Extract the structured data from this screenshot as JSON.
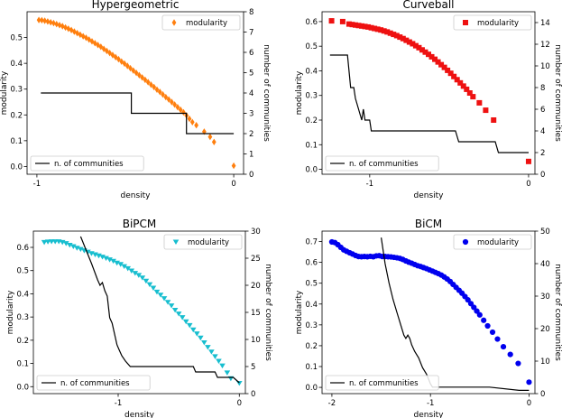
{
  "figure_caption": "",
  "chart_data": [
    {
      "type": "line",
      "title": "Hypergeometric",
      "xlabel": "density",
      "ylabel": "modularity",
      "y2label": "number of communities",
      "xlim": [
        -1.05,
        0.05
      ],
      "ylim": [
        -0.03,
        0.6
      ],
      "y2lim": [
        0,
        8
      ],
      "xticks": [
        -1,
        0
      ],
      "xtick_labels": [
        "-1",
        "0"
      ],
      "yticks": [
        0.0,
        0.1,
        0.2,
        0.3,
        0.4,
        0.5
      ],
      "ytick_labels": [
        "0.0",
        "0.1",
        "0.2",
        "0.3",
        "0.4",
        "0.5"
      ],
      "y2ticks": [
        0,
        1,
        2,
        3,
        4,
        5,
        6,
        7,
        8
      ],
      "y2tick_labels": [
        "0",
        "1",
        "2",
        "3",
        "4",
        "5",
        "6",
        "7",
        "8"
      ],
      "series": [
        {
          "name": "modularity",
          "axis": "left",
          "marker": "diamond",
          "color": "#ff7f0e",
          "legend_loc": "top-right",
          "x": [
            -0.99,
            -0.975,
            -0.96,
            -0.945,
            -0.93,
            -0.915,
            -0.9,
            -0.885,
            -0.87,
            -0.855,
            -0.84,
            -0.825,
            -0.81,
            -0.795,
            -0.78,
            -0.765,
            -0.75,
            -0.735,
            -0.72,
            -0.705,
            -0.69,
            -0.675,
            -0.66,
            -0.645,
            -0.63,
            -0.615,
            -0.6,
            -0.585,
            -0.57,
            -0.555,
            -0.54,
            -0.525,
            -0.51,
            -0.495,
            -0.48,
            -0.465,
            -0.45,
            -0.435,
            -0.42,
            -0.405,
            -0.39,
            -0.375,
            -0.36,
            -0.345,
            -0.33,
            -0.315,
            -0.3,
            -0.285,
            -0.27,
            -0.255,
            -0.24,
            -0.225,
            -0.21,
            -0.19,
            -0.15,
            -0.12,
            -0.1,
            0.0
          ],
          "y": [
            0.568,
            0.567,
            0.565,
            0.562,
            0.559,
            0.556,
            0.552,
            0.548,
            0.544,
            0.539,
            0.534,
            0.529,
            0.523,
            0.517,
            0.511,
            0.505,
            0.499,
            0.492,
            0.485,
            0.478,
            0.471,
            0.464,
            0.456,
            0.448,
            0.44,
            0.432,
            0.424,
            0.416,
            0.407,
            0.399,
            0.39,
            0.381,
            0.372,
            0.363,
            0.354,
            0.345,
            0.336,
            0.327,
            0.317,
            0.308,
            0.298,
            0.289,
            0.279,
            0.269,
            0.26,
            0.25,
            0.24,
            0.23,
            0.22,
            0.21,
            0.198,
            0.185,
            0.172,
            0.16,
            0.135,
            0.115,
            0.095,
            0.003
          ]
        },
        {
          "name": "n. of communities",
          "axis": "right",
          "marker": "none",
          "color": "#000000",
          "legend_loc": "bottom-left",
          "x": [
            -0.98,
            -0.52,
            -0.52,
            -0.24,
            -0.24,
            0.0
          ],
          "y": [
            4,
            4,
            3,
            3,
            2,
            2
          ]
        }
      ]
    },
    {
      "type": "line",
      "title": "Curveball",
      "xlabel": "density",
      "ylabel": "modularity",
      "y2label": "number of communities",
      "xlim": [
        -1.3,
        0.04
      ],
      "ylim": [
        -0.02,
        0.64
      ],
      "y2lim": [
        0,
        15
      ],
      "xticks": [
        -1,
        0
      ],
      "xtick_labels": [
        "-1",
        "0"
      ],
      "yticks": [
        0.0,
        0.1,
        0.2,
        0.3,
        0.4,
        0.5,
        0.6
      ],
      "ytick_labels": [
        "0.0",
        "0.1",
        "0.2",
        "0.3",
        "0.4",
        "0.5",
        "0.6"
      ],
      "y2ticks": [
        0,
        2,
        4,
        6,
        8,
        10,
        12,
        14
      ],
      "y2tick_labels": [
        "0",
        "2",
        "4",
        "6",
        "8",
        "10",
        "12",
        "14"
      ],
      "series": [
        {
          "name": "modularity",
          "axis": "left",
          "marker": "square",
          "color": "#ee1111",
          "legend_loc": "top-right",
          "x": [
            -1.24,
            -1.17,
            -1.13,
            -1.11,
            -1.09,
            -1.07,
            -1.05,
            -1.03,
            -1.01,
            -0.99,
            -0.97,
            -0.95,
            -0.93,
            -0.91,
            -0.89,
            -0.87,
            -0.85,
            -0.83,
            -0.81,
            -0.79,
            -0.77,
            -0.75,
            -0.73,
            -0.71,
            -0.69,
            -0.67,
            -0.65,
            -0.63,
            -0.61,
            -0.59,
            -0.57,
            -0.55,
            -0.53,
            -0.51,
            -0.49,
            -0.47,
            -0.45,
            -0.43,
            -0.41,
            -0.39,
            -0.37,
            -0.35,
            -0.31,
            -0.27,
            -0.22,
            0.0
          ],
          "y": [
            0.603,
            0.6,
            0.59,
            0.588,
            0.586,
            0.584,
            0.582,
            0.58,
            0.578,
            0.575,
            0.572,
            0.569,
            0.566,
            0.562,
            0.558,
            0.553,
            0.548,
            0.543,
            0.537,
            0.531,
            0.524,
            0.517,
            0.51,
            0.502,
            0.494,
            0.485,
            0.476,
            0.467,
            0.457,
            0.447,
            0.436,
            0.425,
            0.414,
            0.402,
            0.39,
            0.377,
            0.364,
            0.351,
            0.338,
            0.325,
            0.31,
            0.295,
            0.27,
            0.24,
            0.2,
            0.032
          ]
        },
        {
          "name": "n. of communities",
          "axis": "right",
          "marker": "none",
          "color": "#000000",
          "legend_loc": "bottom-left",
          "x": [
            -1.25,
            -1.14,
            -1.12,
            -1.1,
            -1.09,
            -1.07,
            -1.05,
            -1.04,
            -1.03,
            -1.0,
            -0.99,
            -0.66,
            -0.64,
            -0.46,
            -0.44,
            -0.21,
            -0.19,
            0.0
          ],
          "y": [
            11,
            11,
            8,
            8,
            7,
            6,
            5,
            6,
            5,
            5,
            4,
            4,
            4,
            4,
            3,
            3,
            2,
            2
          ]
        }
      ]
    },
    {
      "type": "line",
      "title": "BiPCM",
      "xlabel": "density",
      "ylabel": "modularity",
      "y2label": "number of communities",
      "xlim": [
        -1.7,
        0.05
      ],
      "ylim": [
        -0.03,
        0.67
      ],
      "y2lim": [
        0,
        30
      ],
      "xticks": [
        -1,
        0
      ],
      "xtick_labels": [
        "-1",
        "0"
      ],
      "yticks": [
        0.0,
        0.1,
        0.2,
        0.3,
        0.4,
        0.5,
        0.6
      ],
      "ytick_labels": [
        "0.0",
        "0.1",
        "0.2",
        "0.3",
        "0.4",
        "0.5",
        "0.6"
      ],
      "y2ticks": [
        0,
        5,
        10,
        15,
        20,
        25,
        30
      ],
      "y2tick_labels": [
        "0",
        "5",
        "10",
        "15",
        "20",
        "25",
        "30"
      ],
      "series": [
        {
          "name": "modularity",
          "axis": "left",
          "marker": "triangle-down",
          "color": "#17becf",
          "legend_loc": "top-right",
          "x": [
            -1.61,
            -1.58,
            -1.55,
            -1.52,
            -1.49,
            -1.46,
            -1.43,
            -1.4,
            -1.37,
            -1.34,
            -1.31,
            -1.28,
            -1.25,
            -1.22,
            -1.19,
            -1.16,
            -1.13,
            -1.1,
            -1.07,
            -1.04,
            -1.01,
            -0.98,
            -0.95,
            -0.92,
            -0.89,
            -0.86,
            -0.83,
            -0.8,
            -0.77,
            -0.74,
            -0.71,
            -0.68,
            -0.65,
            -0.62,
            -0.59,
            -0.56,
            -0.53,
            -0.5,
            -0.47,
            -0.44,
            -0.41,
            -0.38,
            -0.35,
            -0.32,
            -0.29,
            -0.26,
            -0.23,
            -0.2,
            -0.17,
            -0.14,
            -0.1,
            -0.07,
            0.0
          ],
          "y": [
            0.622,
            0.624,
            0.625,
            0.625,
            0.625,
            0.622,
            0.617,
            0.61,
            0.604,
            0.597,
            0.592,
            0.586,
            0.58,
            0.574,
            0.569,
            0.564,
            0.559,
            0.553,
            0.547,
            0.541,
            0.533,
            0.527,
            0.518,
            0.509,
            0.499,
            0.489,
            0.48,
            0.469,
            0.455,
            0.44,
            0.425,
            0.408,
            0.395,
            0.38,
            0.364,
            0.349,
            0.33,
            0.314,
            0.298,
            0.28,
            0.264,
            0.245,
            0.228,
            0.21,
            0.19,
            0.17,
            0.15,
            0.13,
            0.11,
            0.09,
            0.06,
            0.035,
            0.015
          ]
        },
        {
          "name": "n. of communities",
          "axis": "right",
          "marker": "none",
          "color": "#000000",
          "legend_loc": "bottom-left",
          "x": [
            -1.31,
            -1.22,
            -1.17,
            -1.15,
            -1.13,
            -1.11,
            -1.09,
            -1.07,
            -1.05,
            -1.03,
            -1.01,
            -0.99,
            -0.97,
            -0.94,
            -0.9,
            -0.87,
            -0.85,
            -0.38,
            -0.36,
            -0.2,
            -0.18,
            -0.05,
            0.0
          ],
          "y": [
            29,
            24,
            21,
            20,
            20.5,
            19,
            18,
            14,
            13,
            11,
            9,
            8,
            7,
            6,
            5,
            5,
            5,
            5,
            4,
            4,
            3,
            3,
            2
          ]
        }
      ]
    },
    {
      "type": "line",
      "title": "BiCM",
      "xlabel": "density",
      "ylabel": "modularity",
      "y2label": "number of communities",
      "xlim": [
        -2.1,
        0.06
      ],
      "ylim": [
        -0.03,
        0.75
      ],
      "y2lim": [
        0,
        50
      ],
      "xticks": [
        -2,
        -1,
        0
      ],
      "xtick_labels": [
        "-2",
        "-1",
        "0"
      ],
      "yticks": [
        0.0,
        0.1,
        0.2,
        0.3,
        0.4,
        0.5,
        0.6,
        0.7
      ],
      "ytick_labels": [
        "0.0",
        "0.1",
        "0.2",
        "0.3",
        "0.4",
        "0.5",
        "0.6",
        "0.7"
      ],
      "y2ticks": [
        0,
        10,
        20,
        30,
        40,
        50
      ],
      "y2tick_labels": [
        "0",
        "10",
        "20",
        "30",
        "40",
        "50"
      ],
      "series": [
        {
          "name": "modularity",
          "axis": "left",
          "marker": "circle",
          "color": "#0000ee",
          "legend_loc": "top-right",
          "x": [
            -2.0,
            -1.97,
            -1.94,
            -1.91,
            -1.88,
            -1.85,
            -1.82,
            -1.79,
            -1.76,
            -1.73,
            -1.7,
            -1.67,
            -1.64,
            -1.61,
            -1.58,
            -1.55,
            -1.52,
            -1.49,
            -1.46,
            -1.43,
            -1.4,
            -1.37,
            -1.34,
            -1.31,
            -1.28,
            -1.25,
            -1.22,
            -1.19,
            -1.16,
            -1.13,
            -1.1,
            -1.07,
            -1.04,
            -1.01,
            -0.98,
            -0.95,
            -0.92,
            -0.89,
            -0.86,
            -0.83,
            -0.8,
            -0.77,
            -0.74,
            -0.71,
            -0.68,
            -0.65,
            -0.62,
            -0.59,
            -0.56,
            -0.53,
            -0.5,
            -0.46,
            -0.42,
            -0.37,
            -0.32,
            -0.26,
            -0.19,
            -0.11,
            0.0
          ],
          "y": [
            0.698,
            0.695,
            0.685,
            0.672,
            0.66,
            0.653,
            0.646,
            0.64,
            0.633,
            0.628,
            0.627,
            0.628,
            0.627,
            0.629,
            0.627,
            0.631,
            0.632,
            0.628,
            0.628,
            0.627,
            0.626,
            0.624,
            0.622,
            0.619,
            0.614,
            0.607,
            0.601,
            0.596,
            0.59,
            0.584,
            0.58,
            0.575,
            0.57,
            0.564,
            0.558,
            0.552,
            0.546,
            0.539,
            0.53,
            0.52,
            0.508,
            0.494,
            0.48,
            0.466,
            0.452,
            0.436,
            0.42,
            0.402,
            0.384,
            0.366,
            0.348,
            0.322,
            0.295,
            0.265,
            0.232,
            0.195,
            0.158,
            0.115,
            0.025
          ]
        },
        {
          "name": "n. of communities",
          "axis": "right",
          "marker": "none",
          "color": "#000000",
          "legend_loc": "bottom-left",
          "x": [
            -1.5,
            -1.46,
            -1.42,
            -1.38,
            -1.34,
            -1.3,
            -1.27,
            -1.25,
            -1.23,
            -1.21,
            -1.19,
            -1.16,
            -1.12,
            -1.08,
            -1.04,
            -1.0,
            -0.98,
            -0.95,
            -0.4,
            -0.1,
            0.0
          ],
          "y": [
            48,
            40,
            34,
            29,
            25,
            21,
            18,
            17,
            18,
            17,
            15,
            13,
            11,
            8,
            6,
            3,
            2,
            2,
            2,
            1,
            1
          ]
        }
      ]
    }
  ]
}
